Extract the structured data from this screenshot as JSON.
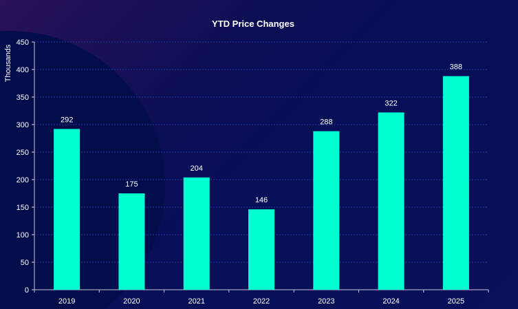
{
  "chart_data": {
    "type": "bar",
    "title": "YTD Price Changes",
    "xlabel": "",
    "ylabel": "Thousands",
    "categories": [
      "2019",
      "2020",
      "2021",
      "2022",
      "2023",
      "2024",
      "2025"
    ],
    "values": [
      292,
      175,
      204,
      146,
      288,
      322,
      388
    ],
    "data_labels": [
      "292",
      "175",
      "204",
      "146",
      "288",
      "322",
      "388"
    ],
    "ylim": [
      0,
      450
    ],
    "yticks": [
      "0",
      "50",
      "100",
      "150",
      "200",
      "250",
      "300",
      "350",
      "400",
      "450"
    ],
    "grid": true,
    "legend": "none",
    "colors": {
      "bar": "#00ffd0",
      "grid": "#1f3a9a",
      "axis": "#c8c8d8"
    }
  }
}
